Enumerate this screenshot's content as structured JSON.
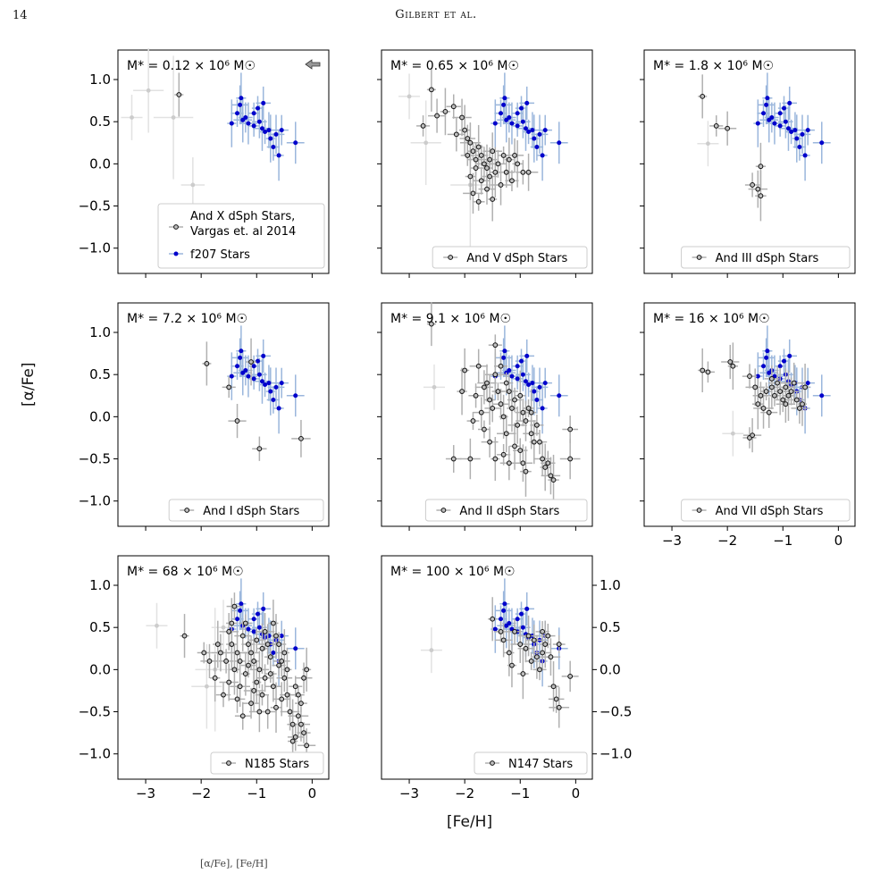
{
  "page": {
    "number": "14",
    "running_head": "Gilbert et al.",
    "caption_fragment": "[α/Fe], [Fe/H]"
  },
  "colors": {
    "f207_points": "#0000cc",
    "f207_errors": "#9ab6dc",
    "dsph_face": "#bfbfbf",
    "dsph_edge": "#111111",
    "dsph_errors": "#b0b0b0",
    "faint_points": "#cccccc",
    "faint_errors": "#e2e2e2"
  },
  "chart_data": {
    "type": "scatter",
    "xlabel": "[Fe/H]",
    "ylabel": "[α/Fe]",
    "xlim": [
      -3.5,
      0.3
    ],
    "ylim": [
      -1.3,
      1.35
    ],
    "xticks": [
      "−3",
      "−2",
      "−1",
      "0"
    ],
    "yticks": [
      "1.0",
      "0.5",
      "0.0",
      "−0.5",
      "−1.0"
    ],
    "reference_series": {
      "name": "f207 Stars",
      "points": [
        [
          -1.45,
          0.48
        ],
        [
          -1.35,
          0.6
        ],
        [
          -1.3,
          0.7
        ],
        [
          -1.28,
          0.78
        ],
        [
          -1.2,
          0.55
        ],
        [
          -1.15,
          0.48
        ],
        [
          -1.05,
          0.6
        ],
        [
          -0.95,
          0.5
        ],
        [
          -0.9,
          0.42
        ],
        [
          -0.85,
          0.38
        ],
        [
          -0.78,
          0.4
        ],
        [
          -0.75,
          0.3
        ],
        [
          -0.7,
          0.2
        ],
        [
          -0.65,
          0.35
        ],
        [
          -0.6,
          0.1
        ],
        [
          -0.55,
          0.4
        ],
        [
          -0.3,
          0.25
        ],
        [
          -1.05,
          0.45
        ],
        [
          -0.88,
          0.72
        ],
        [
          -1.25,
          0.52
        ],
        [
          -0.98,
          0.66
        ]
      ]
    },
    "panels": [
      {
        "id": "and-x",
        "mass_label": "M* = 0.12 × 10⁶ M☉",
        "arrow": true,
        "legend": [
          "And X dSph Stars,",
          "Vargas et. al 2014",
          "f207 Stars"
        ],
        "points": [
          [
            -2.4,
            0.82
          ]
        ],
        "faint": [
          [
            -3.25,
            0.55
          ],
          [
            -2.95,
            0.87
          ],
          [
            -2.5,
            0.55
          ],
          [
            -2.15,
            -0.25
          ]
        ]
      },
      {
        "id": "and-v",
        "mass_label": "M* = 0.65 × 10⁶ M☉",
        "legend": [
          "And V dSph Stars"
        ],
        "points": [
          [
            -2.6,
            0.88
          ],
          [
            -2.75,
            0.45
          ],
          [
            -2.5,
            0.57
          ],
          [
            -2.35,
            0.62
          ],
          [
            -2.2,
            0.68
          ],
          [
            -2.05,
            0.55
          ],
          [
            -2.0,
            0.4
          ],
          [
            -1.95,
            0.3
          ],
          [
            -1.9,
            0.25
          ],
          [
            -1.85,
            0.15
          ],
          [
            -1.8,
            0.05
          ],
          [
            -1.75,
            0.2
          ],
          [
            -1.7,
            0.1
          ],
          [
            -1.65,
            0.0
          ],
          [
            -1.6,
            -0.05
          ],
          [
            -1.55,
            0.05
          ],
          [
            -1.5,
            0.15
          ],
          [
            -1.45,
            -0.1
          ],
          [
            -1.4,
            0.0
          ],
          [
            -1.35,
            -0.25
          ],
          [
            -1.3,
            0.1
          ],
          [
            -1.25,
            -0.1
          ],
          [
            -1.2,
            0.05
          ],
          [
            -1.15,
            -0.2
          ],
          [
            -1.1,
            0.1
          ],
          [
            -1.05,
            0.0
          ],
          [
            -0.95,
            -0.1
          ],
          [
            -0.85,
            -0.1
          ],
          [
            -1.8,
            -0.05
          ],
          [
            -1.7,
            -0.2
          ],
          [
            -1.85,
            -0.35
          ],
          [
            -1.75,
            -0.45
          ],
          [
            -1.6,
            -0.3
          ],
          [
            -1.5,
            -0.42
          ],
          [
            -1.95,
            0.1
          ],
          [
            -2.15,
            0.35
          ],
          [
            -1.9,
            -0.15
          ],
          [
            -1.55,
            -0.15
          ]
        ],
        "faint": [
          [
            -3.0,
            0.8
          ],
          [
            -2.7,
            0.25
          ],
          [
            -1.9,
            -0.25
          ]
        ]
      },
      {
        "id": "and-iii",
        "mass_label": "M* = 1.8 × 10⁶ M☉",
        "legend": [
          "And III dSph Stars"
        ],
        "points": [
          [
            -2.45,
            0.8
          ],
          [
            -2.2,
            0.45
          ],
          [
            -2.0,
            0.42
          ],
          [
            -1.4,
            -0.03
          ],
          [
            -1.55,
            -0.25
          ],
          [
            -1.45,
            -0.3
          ],
          [
            -1.4,
            -0.38
          ]
        ],
        "faint": [
          [
            -2.35,
            0.24
          ]
        ]
      },
      {
        "id": "and-i",
        "mass_label": "M* = 7.2 × 10⁶ M☉",
        "legend": [
          "And I dSph Stars"
        ],
        "points": [
          [
            -1.9,
            0.63
          ],
          [
            -1.5,
            0.35
          ],
          [
            -1.35,
            -0.05
          ],
          [
            -1.1,
            0.65
          ],
          [
            -0.95,
            -0.38
          ],
          [
            -0.2,
            -0.26
          ]
        ],
        "faint": []
      },
      {
        "id": "and-ii",
        "mass_label": "M* = 9.1 × 10⁶ M☉",
        "legend": [
          "And II dSph Stars"
        ],
        "points": [
          [
            -2.6,
            1.1
          ],
          [
            -1.45,
            0.85
          ],
          [
            -1.75,
            0.6
          ],
          [
            -2.05,
            0.3
          ],
          [
            -1.8,
            0.25
          ],
          [
            -1.6,
            0.4
          ],
          [
            -1.55,
            0.2
          ],
          [
            -1.5,
            0.1
          ],
          [
            -1.45,
            0.5
          ],
          [
            -1.4,
            0.3
          ],
          [
            -1.35,
            0.15
          ],
          [
            -1.3,
            0.0
          ],
          [
            -1.25,
            0.4
          ],
          [
            -1.2,
            0.3
          ],
          [
            -1.15,
            0.1
          ],
          [
            -1.1,
            0.2
          ],
          [
            -1.05,
            -0.1
          ],
          [
            -1.0,
            0.25
          ],
          [
            -0.95,
            0.05
          ],
          [
            -0.9,
            -0.05
          ],
          [
            -0.85,
            0.1
          ],
          [
            -0.8,
            -0.2
          ],
          [
            -0.75,
            -0.3
          ],
          [
            -0.7,
            -0.1
          ],
          [
            -0.6,
            -0.5
          ],
          [
            -0.55,
            -0.6
          ],
          [
            -0.5,
            -0.55
          ],
          [
            -0.45,
            -0.7
          ],
          [
            -0.4,
            -0.75
          ],
          [
            -0.1,
            -0.15
          ],
          [
            -0.1,
            -0.5
          ],
          [
            -1.65,
            -0.15
          ],
          [
            -1.55,
            -0.3
          ],
          [
            -1.45,
            -0.5
          ],
          [
            -1.3,
            -0.45
          ],
          [
            -1.2,
            -0.55
          ],
          [
            -1.1,
            -0.35
          ],
          [
            -1.0,
            -0.4
          ],
          [
            -0.95,
            -0.55
          ],
          [
            -0.9,
            -0.65
          ],
          [
            -2.2,
            -0.5
          ],
          [
            -1.9,
            -0.5
          ],
          [
            -1.85,
            -0.05
          ],
          [
            -1.7,
            0.05
          ],
          [
            -2.0,
            0.55
          ],
          [
            -1.35,
            0.6
          ],
          [
            -1.65,
            0.35
          ],
          [
            -0.8,
            0.05
          ],
          [
            -0.65,
            -0.3
          ],
          [
            -1.25,
            -0.2
          ]
        ],
        "faint": [
          [
            -2.55,
            0.35
          ]
        ]
      },
      {
        "id": "and-vii",
        "mass_label": "M* = 16 × 10⁶ M☉",
        "legend": [
          "And VII dSph Stars"
        ],
        "points": [
          [
            -2.45,
            0.55
          ],
          [
            -2.35,
            0.53
          ],
          [
            -1.95,
            0.65
          ],
          [
            -1.9,
            0.6
          ],
          [
            -1.6,
            0.48
          ],
          [
            -1.5,
            0.35
          ],
          [
            -1.45,
            0.15
          ],
          [
            -1.4,
            0.25
          ],
          [
            -1.35,
            0.1
          ],
          [
            -1.3,
            0.3
          ],
          [
            -1.25,
            0.05
          ],
          [
            -1.2,
            0.35
          ],
          [
            -1.15,
            0.25
          ],
          [
            -1.1,
            0.4
          ],
          [
            -1.05,
            0.3
          ],
          [
            -1.0,
            0.2
          ],
          [
            -0.95,
            0.35
          ],
          [
            -0.9,
            0.25
          ],
          [
            -0.85,
            0.3
          ],
          [
            -0.8,
            0.4
          ],
          [
            -0.75,
            0.2
          ],
          [
            -0.7,
            0.1
          ],
          [
            -0.65,
            0.15
          ],
          [
            -1.6,
            -0.25
          ],
          [
            -1.55,
            -0.22
          ],
          [
            -0.6,
            0.35
          ],
          [
            -1.2,
            0.45
          ],
          [
            -0.95,
            0.15
          ]
        ],
        "faint": [
          [
            -1.9,
            -0.2
          ]
        ]
      },
      {
        "id": "n185",
        "mass_label": "M* = 68 × 10⁶ M☉",
        "legend": [
          "N185 Stars"
        ],
        "points": [
          [
            -2.3,
            0.4
          ],
          [
            -1.95,
            0.2
          ],
          [
            -1.85,
            0.1
          ],
          [
            -1.75,
            -0.1
          ],
          [
            -1.6,
            -0.3
          ],
          [
            -1.5,
            0.45
          ],
          [
            -1.45,
            0.3
          ],
          [
            -1.4,
            0.75
          ],
          [
            -1.35,
            0.2
          ],
          [
            -1.3,
            0.1
          ],
          [
            -1.25,
            0.4
          ],
          [
            -1.2,
            -0.05
          ],
          [
            -1.15,
            0.3
          ],
          [
            -1.1,
            0.2
          ],
          [
            -1.05,
            0.1
          ],
          [
            -1.0,
            0.35
          ],
          [
            -0.95,
            0.0
          ],
          [
            -0.9,
            0.25
          ],
          [
            -0.85,
            -0.1
          ],
          [
            -0.8,
            0.3
          ],
          [
            -0.75,
            0.15
          ],
          [
            -0.7,
            -0.2
          ],
          [
            -0.65,
            0.4
          ],
          [
            -0.6,
            0.05
          ],
          [
            -0.55,
            -0.35
          ],
          [
            -0.5,
            0.2
          ],
          [
            -0.45,
            -0.3
          ],
          [
            -0.4,
            -0.5
          ],
          [
            -0.35,
            -0.65
          ],
          [
            -0.3,
            -0.8
          ],
          [
            -0.25,
            -0.55
          ],
          [
            -0.2,
            -0.4
          ],
          [
            -0.15,
            -0.1
          ],
          [
            -0.1,
            0.0
          ],
          [
            -0.15,
            -0.75
          ],
          [
            -0.1,
            -0.9
          ],
          [
            -0.35,
            -0.85
          ],
          [
            -1.55,
            0.1
          ],
          [
            -1.5,
            -0.15
          ],
          [
            -1.4,
            0.0
          ],
          [
            -1.35,
            -0.35
          ],
          [
            -1.3,
            -0.2
          ],
          [
            -1.2,
            0.55
          ],
          [
            -1.1,
            -0.4
          ],
          [
            -1.0,
            -0.15
          ],
          [
            -0.9,
            -0.3
          ],
          [
            -0.8,
            -0.5
          ],
          [
            -0.7,
            0.55
          ],
          [
            -0.6,
            0.3
          ],
          [
            -1.65,
            0.2
          ],
          [
            -1.45,
            0.55
          ],
          [
            -1.25,
            -0.55
          ],
          [
            -0.95,
            -0.5
          ],
          [
            -0.75,
            -0.05
          ],
          [
            -0.55,
            0.1
          ],
          [
            -0.45,
            0.0
          ],
          [
            -0.3,
            -0.2
          ],
          [
            -0.2,
            -0.65
          ],
          [
            -1.7,
            0.3
          ],
          [
            -1.15,
            0.05
          ],
          [
            -0.85,
            0.45
          ],
          [
            -0.65,
            -0.45
          ],
          [
            -0.5,
            -0.1
          ],
          [
            -1.05,
            -0.25
          ],
          [
            -0.25,
            -0.3
          ]
        ],
        "faint": [
          [
            -2.8,
            0.52
          ],
          [
            -1.9,
            -0.2
          ],
          [
            -1.75,
            0.0
          ],
          [
            -1.6,
            0.5
          ]
        ]
      },
      {
        "id": "n147",
        "mass_label": "M* = 100 × 10⁶ M☉",
        "legend": [
          "N147 Stars"
        ],
        "points": [
          [
            -1.5,
            0.6
          ],
          [
            -1.35,
            0.45
          ],
          [
            -1.3,
            0.35
          ],
          [
            -1.2,
            0.2
          ],
          [
            -1.1,
            0.45
          ],
          [
            -1.0,
            0.3
          ],
          [
            -0.95,
            -0.05
          ],
          [
            -0.9,
            0.25
          ],
          [
            -0.85,
            0.4
          ],
          [
            -0.8,
            0.1
          ],
          [
            -0.75,
            0.35
          ],
          [
            -0.7,
            0.15
          ],
          [
            -0.65,
            0.0
          ],
          [
            -0.6,
            0.2
          ],
          [
            -0.55,
            0.3
          ],
          [
            -0.5,
            0.4
          ],
          [
            -0.45,
            0.15
          ],
          [
            -0.4,
            -0.2
          ],
          [
            -0.35,
            -0.35
          ],
          [
            -0.3,
            -0.45
          ],
          [
            -0.3,
            0.3
          ],
          [
            -0.1,
            -0.08
          ],
          [
            -1.15,
            0.05
          ],
          [
            -0.6,
            0.45
          ]
        ],
        "faint": [
          [
            -2.6,
            0.23
          ]
        ]
      }
    ]
  }
}
